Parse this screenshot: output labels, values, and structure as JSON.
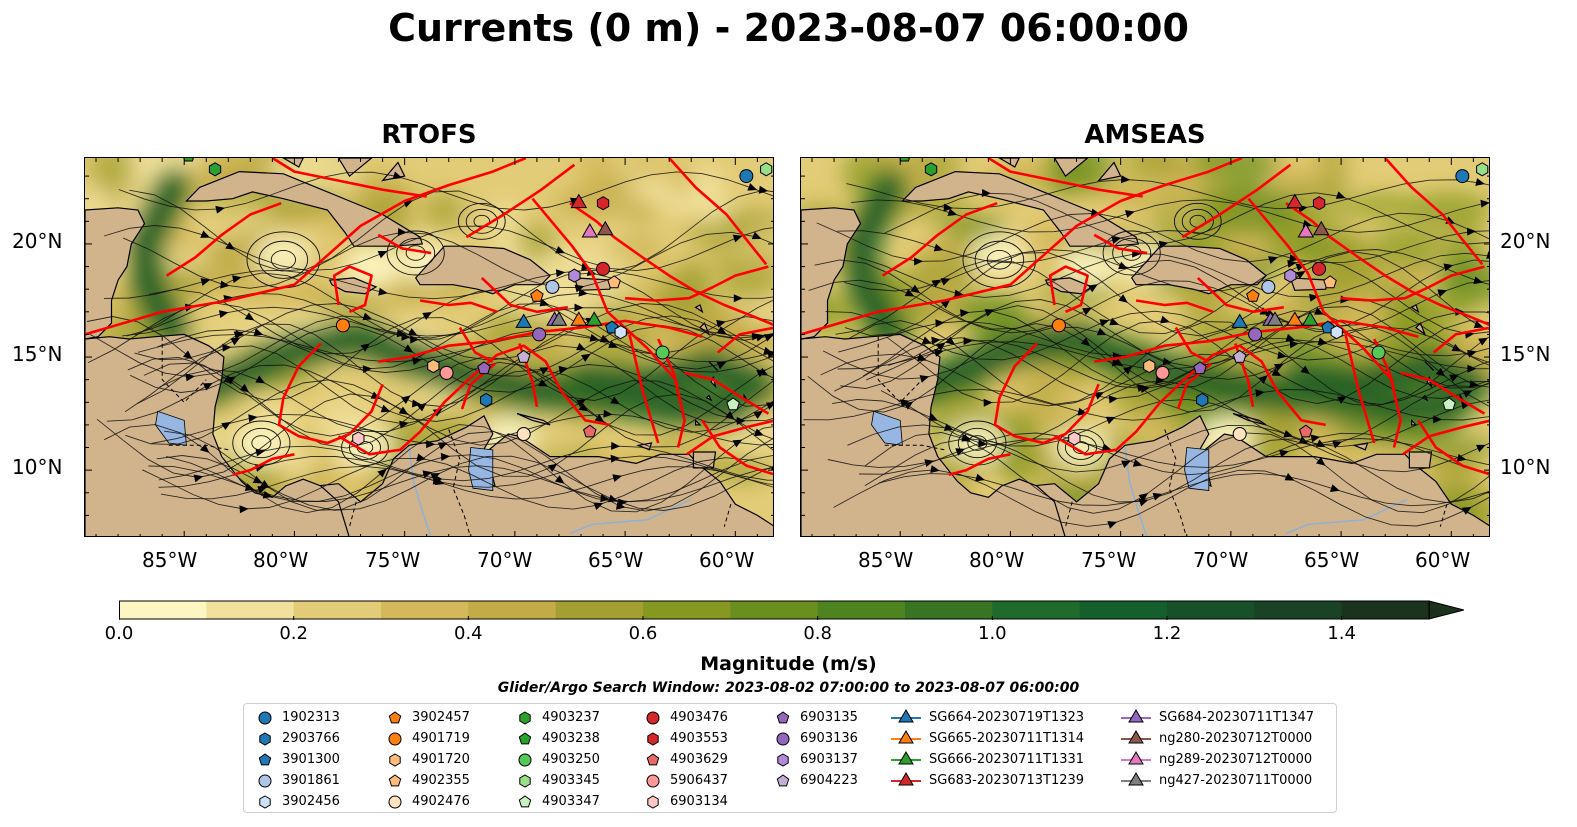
{
  "title": "Currents (0 m) - 2023-08-07 06:00:00",
  "panels": [
    {
      "title": "RTOFS"
    },
    {
      "title": "AMSEAS"
    }
  ],
  "lat_labels": [
    "20°N",
    "15°N",
    "10°N"
  ],
  "lon_labels": [
    "85°W",
    "80°W",
    "75°W",
    "70°W",
    "65°W",
    "60°W"
  ],
  "colorbar": {
    "label": "Magnitude (m/s)",
    "ticks": [
      "0.0",
      "0.2",
      "0.4",
      "0.6",
      "0.8",
      "1.0",
      "1.2",
      "1.4"
    ],
    "min": 0.0,
    "max": 1.5,
    "colors": [
      "#fdf6c3",
      "#f1e19c",
      "#e3cc77",
      "#d4b85a",
      "#c3ab47",
      "#a3a031",
      "#86981f",
      "#6b8f1e",
      "#4e8420",
      "#377523",
      "#206a2c",
      "#155f2d",
      "#18502a",
      "#1a4224",
      "#1b321c"
    ]
  },
  "search_window": "Glider/Argo Search Window: 2023-08-02 07:00:00 to 2023-08-07 06:00:00",
  "legend": [
    {
      "label": "1902313",
      "shape": "circle",
      "color": "#1f77b4"
    },
    {
      "label": "2903766",
      "shape": "hexagon",
      "color": "#1f77b4"
    },
    {
      "label": "3901300",
      "shape": "pentagon",
      "color": "#1f77b4"
    },
    {
      "label": "3901861",
      "shape": "circle",
      "color": "#aec7e8"
    },
    {
      "label": "3902456",
      "shape": "hexagon",
      "color": "#cfe2f7"
    },
    {
      "label": "3902457",
      "shape": "pentagon",
      "color": "#ff7f0e"
    },
    {
      "label": "4901719",
      "shape": "circle",
      "color": "#ff7f0e"
    },
    {
      "label": "4901720",
      "shape": "hexagon",
      "color": "#ffbb78"
    },
    {
      "label": "4902355",
      "shape": "pentagon",
      "color": "#ffbb78"
    },
    {
      "label": "4902476",
      "shape": "circle",
      "color": "#ffe2c0"
    },
    {
      "label": "4903237",
      "shape": "hexagon",
      "color": "#2ca02c"
    },
    {
      "label": "4903238",
      "shape": "pentagon",
      "color": "#2ca02c"
    },
    {
      "label": "4903250",
      "shape": "circle",
      "color": "#55c855"
    },
    {
      "label": "4903345",
      "shape": "hexagon",
      "color": "#98df8a"
    },
    {
      "label": "4903347",
      "shape": "pentagon",
      "color": "#c9f0c0"
    },
    {
      "label": "4903476",
      "shape": "circle",
      "color": "#d62728"
    },
    {
      "label": "4903553",
      "shape": "hexagon",
      "color": "#d62728"
    },
    {
      "label": "4903629",
      "shape": "pentagon",
      "color": "#e66a6a"
    },
    {
      "label": "5906437",
      "shape": "circle",
      "color": "#ff9896"
    },
    {
      "label": "6903134",
      "shape": "hexagon",
      "color": "#ffc8c6"
    },
    {
      "label": "6903135",
      "shape": "pentagon",
      "color": "#9467bd"
    },
    {
      "label": "6903136",
      "shape": "circle",
      "color": "#9467bd"
    },
    {
      "label": "6903137",
      "shape": "hexagon",
      "color": "#b08ad6"
    },
    {
      "label": "6904223",
      "shape": "pentagon",
      "color": "#c5b0d5"
    },
    {
      "label": "SG664-20230719T1323",
      "shape": "triangle",
      "color": "#1f77b4"
    },
    {
      "label": "SG665-20230711T1314",
      "shape": "triangle",
      "color": "#ff7f0e"
    },
    {
      "label": "SG666-20230711T1331",
      "shape": "triangle",
      "color": "#2ca02c"
    },
    {
      "label": "SG683-20230713T1239",
      "shape": "triangle",
      "color": "#d62728"
    },
    {
      "label": "SG684-20230711T1347",
      "shape": "triangle",
      "color": "#9467bd"
    },
    {
      "label": "ng280-20230712T0000",
      "shape": "triangle",
      "color": "#8c564b"
    },
    {
      "label": "ng289-20230712T0000",
      "shape": "triangle",
      "color": "#e377c2"
    },
    {
      "label": "ng427-20230711T0000",
      "shape": "triangle",
      "color": "#7f7f7f"
    }
  ],
  "map_colors": {
    "land": "#d2b48c",
    "water": "#97b6e1",
    "tracks": "#ff0000",
    "coast": "#000000"
  },
  "markers": [
    {
      "id": "1902313",
      "lon": -59.5,
      "lat": 23.0
    },
    {
      "id": "2903766",
      "lon": -71.3,
      "lat": 13.1
    },
    {
      "id": "3901300",
      "lon": -65.6,
      "lat": 16.3
    },
    {
      "id": "3901861",
      "lon": -68.3,
      "lat": 18.1
    },
    {
      "id": "3902456",
      "lon": -65.2,
      "lat": 16.1
    },
    {
      "id": "3902457",
      "lon": -69.0,
      "lat": 17.7
    },
    {
      "id": "4901719",
      "lon": -77.8,
      "lat": 16.4
    },
    {
      "id": "4901720",
      "lon": -73.7,
      "lat": 14.6
    },
    {
      "id": "4902355",
      "lon": -65.5,
      "lat": 18.3
    },
    {
      "id": "4902476",
      "lon": -69.6,
      "lat": 11.6
    },
    {
      "id": "4903237",
      "lon": -83.6,
      "lat": 23.3
    },
    {
      "id": "4903238",
      "lon": -84.8,
      "lat": 23.9
    },
    {
      "id": "4903250",
      "lon": -63.3,
      "lat": 15.2
    },
    {
      "id": "4903345",
      "lon": -58.6,
      "lat": 23.3
    },
    {
      "id": "4903347",
      "lon": -60.1,
      "lat": 12.9
    },
    {
      "id": "4903476",
      "lon": -66.0,
      "lat": 18.9
    },
    {
      "id": "4903553",
      "lon": -66.0,
      "lat": 21.8
    },
    {
      "id": "4903629",
      "lon": -66.6,
      "lat": 11.7
    },
    {
      "id": "5906437",
      "lon": -73.1,
      "lat": 14.3
    },
    {
      "id": "6903134",
      "lon": -77.1,
      "lat": 11.4
    },
    {
      "id": "6903135",
      "lon": -71.4,
      "lat": 14.5
    },
    {
      "id": "6903136",
      "lon": -68.9,
      "lat": 16.0
    },
    {
      "id": "6903137",
      "lon": -67.3,
      "lat": 18.6
    },
    {
      "id": "6904223",
      "lon": -69.6,
      "lat": 15.0
    },
    {
      "id": "SG664-20230719T1323",
      "lon": -69.6,
      "lat": 16.5
    },
    {
      "id": "SG665-20230711T1314",
      "lon": -67.1,
      "lat": 16.6
    },
    {
      "id": "SG666-20230711T1331",
      "lon": -66.4,
      "lat": 16.6
    },
    {
      "id": "SG683-20230713T1239",
      "lon": -67.1,
      "lat": 21.8
    },
    {
      "id": "SG684-20230711T1347",
      "lon": -68.2,
      "lat": 16.6
    },
    {
      "id": "ng280-20230712T0000",
      "lon": -65.9,
      "lat": 20.6
    },
    {
      "id": "ng289-20230712T0000",
      "lon": -66.6,
      "lat": 20.5
    },
    {
      "id": "ng427-20230711T0000",
      "lon": -68.0,
      "lat": 16.6
    }
  ]
}
